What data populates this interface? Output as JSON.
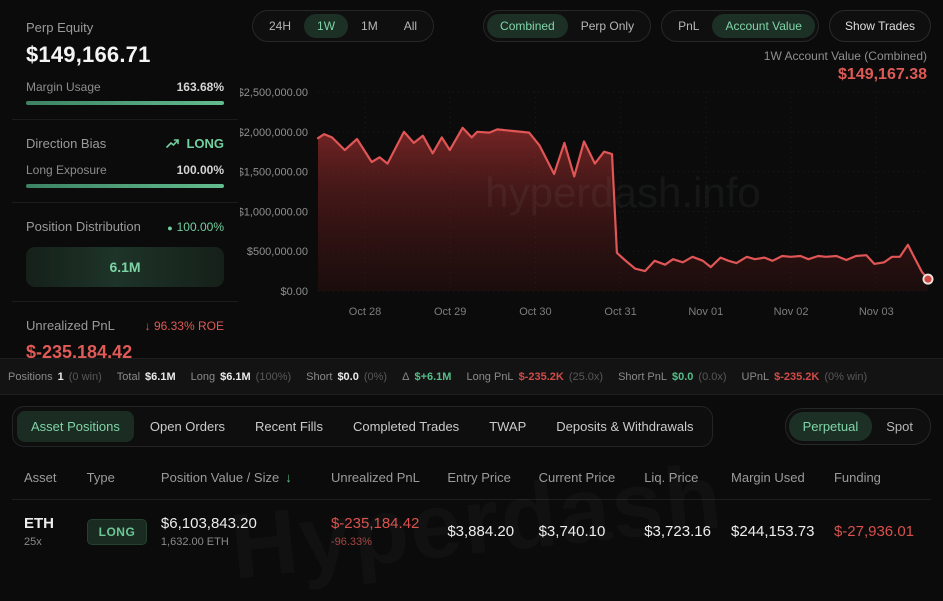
{
  "colors": {
    "accent_green": "#7fd3a6",
    "accent_red": "#e05555",
    "green_value": "#55bd88",
    "red_value": "#d14b47"
  },
  "sidebar": {
    "perp_equity_label": "Perp Equity",
    "perp_equity_value": "$149,166.71",
    "margin_usage_label": "Margin Usage",
    "margin_usage_value": "163.68%",
    "direction_bias_label": "Direction Bias",
    "direction_bias_value": "LONG",
    "long_exposure_label": "Long Exposure",
    "long_exposure_value": "100.00%",
    "position_distribution_label": "Position Distribution",
    "position_distribution_value": "100.00%",
    "distribution_bar_label": "6.1M",
    "unrealized_pnl_label": "Unrealized PnL",
    "unrealized_roe_value": "96.33% ROE",
    "unrealized_pnl_value": "$-235,184.42"
  },
  "toolbar": {
    "ranges": [
      "24H",
      "1W",
      "1M",
      "All"
    ],
    "active_range": "1W",
    "scopes": [
      "Combined",
      "Perp Only"
    ],
    "active_scope": "Combined",
    "metrics": [
      "PnL",
      "Account Value"
    ],
    "active_metric": "Account Value",
    "show_trades_label": "Show Trades"
  },
  "chart_header": {
    "label": "1W Account Value (Combined)",
    "value": "$149,167.38"
  },
  "chart_data": {
    "type": "area",
    "title": "1W Account Value (Combined)",
    "ylim": [
      0,
      2500000
    ],
    "y_ticks": [
      {
        "value": 2500000,
        "label": "$2,500,000.00"
      },
      {
        "value": 2000000,
        "label": "$2,000,000.00"
      },
      {
        "value": 1500000,
        "label": "$1,500,000.00"
      },
      {
        "value": 1000000,
        "label": "$1,000,000.00"
      },
      {
        "value": 500000,
        "label": "$500,000.00"
      },
      {
        "value": 0,
        "label": "$0.00"
      }
    ],
    "x_ticks": [
      "Oct 28",
      "Oct 29",
      "Oct 30",
      "Oct 31",
      "Nov 01",
      "Nov 02",
      "Nov 03"
    ],
    "grid": "dotted",
    "legend": "none",
    "line_color": "#e05555",
    "last_value": 149167.38,
    "watermark": "hyperdash.info",
    "points": [
      [
        0.0,
        1920000
      ],
      [
        0.01,
        1970000
      ],
      [
        0.023,
        1930000
      ],
      [
        0.044,
        1770000
      ],
      [
        0.064,
        1910000
      ],
      [
        0.088,
        1620000
      ],
      [
        0.101,
        1680000
      ],
      [
        0.114,
        1600000
      ],
      [
        0.141,
        2000000
      ],
      [
        0.157,
        1860000
      ],
      [
        0.172,
        1950000
      ],
      [
        0.188,
        1730000
      ],
      [
        0.203,
        1930000
      ],
      [
        0.216,
        1770000
      ],
      [
        0.237,
        2050000
      ],
      [
        0.252,
        1930000
      ],
      [
        0.261,
        2000000
      ],
      [
        0.281,
        1990000
      ],
      [
        0.294,
        2030000
      ],
      [
        0.32,
        2010000
      ],
      [
        0.346,
        1990000
      ],
      [
        0.363,
        1830000
      ],
      [
        0.387,
        1470000
      ],
      [
        0.404,
        1860000
      ],
      [
        0.42,
        1440000
      ],
      [
        0.436,
        1880000
      ],
      [
        0.454,
        1600000
      ],
      [
        0.469,
        1750000
      ],
      [
        0.482,
        1720000
      ],
      [
        0.49,
        480000
      ],
      [
        0.503,
        390000
      ],
      [
        0.52,
        280000
      ],
      [
        0.536,
        250000
      ],
      [
        0.552,
        380000
      ],
      [
        0.569,
        330000
      ],
      [
        0.582,
        400000
      ],
      [
        0.598,
        360000
      ],
      [
        0.614,
        430000
      ],
      [
        0.631,
        380000
      ],
      [
        0.644,
        300000
      ],
      [
        0.66,
        420000
      ],
      [
        0.673,
        380000
      ],
      [
        0.686,
        350000
      ],
      [
        0.703,
        430000
      ],
      [
        0.716,
        400000
      ],
      [
        0.732,
        420000
      ],
      [
        0.745,
        380000
      ],
      [
        0.761,
        440000
      ],
      [
        0.775,
        430000
      ],
      [
        0.791,
        440000
      ],
      [
        0.804,
        400000
      ],
      [
        0.82,
        440000
      ],
      [
        0.833,
        430000
      ],
      [
        0.85,
        440000
      ],
      [
        0.866,
        390000
      ],
      [
        0.882,
        440000
      ],
      [
        0.899,
        450000
      ],
      [
        0.912,
        340000
      ],
      [
        0.928,
        360000
      ],
      [
        0.941,
        430000
      ],
      [
        0.954,
        430000
      ],
      [
        0.967,
        580000
      ],
      [
        0.977,
        430000
      ],
      [
        0.99,
        240000
      ],
      [
        1.0,
        149167
      ]
    ]
  },
  "summary": {
    "items": [
      {
        "label": "Positions",
        "value": "1",
        "color": "white",
        "suffix": "(0 win)"
      },
      {
        "label": "Total",
        "value": "$6.1M",
        "color": "white",
        "suffix": ""
      },
      {
        "label": "Long",
        "value": "$6.1M",
        "color": "white",
        "suffix": "(100%)"
      },
      {
        "label": "Short",
        "value": "$0.0",
        "color": "white",
        "suffix": "(0%)"
      },
      {
        "label": "Δ",
        "value": "$+6.1M",
        "color": "green",
        "suffix": ""
      },
      {
        "label": "Long PnL",
        "value": "$-235.2K",
        "color": "red",
        "suffix": "(25.0x)"
      },
      {
        "label": "Short PnL",
        "value": "$0.0",
        "color": "green",
        "suffix": "(0.0x)"
      },
      {
        "label": "UPnL",
        "value": "$-235.2K",
        "color": "red",
        "suffix": "(0% win)"
      }
    ]
  },
  "tabs": {
    "items": [
      "Asset Positions",
      "Open Orders",
      "Recent Fills",
      "Completed Trades",
      "TWAP",
      "Deposits & Withdrawals"
    ],
    "active": "Asset Positions",
    "markets": [
      "Perpetual",
      "Spot"
    ],
    "active_market": "Perpetual"
  },
  "table": {
    "headers": [
      "Asset",
      "Type",
      "Position Value / Size",
      "Unrealized PnL",
      "Entry Price",
      "Current Price",
      "Liq. Price",
      "Margin Used",
      "Funding"
    ],
    "sort_column": "Position Value / Size",
    "sort_arrow": "↓",
    "rows": [
      {
        "asset": "ETH",
        "leverage": "25x",
        "type": "LONG",
        "position_value": "$6,103,843.20",
        "position_size": "1,632.00 ETH",
        "unrealized_pnl": "$-235,184.42",
        "unrealized_pct": "-96.33%",
        "entry_price": "$3,884.20",
        "current_price": "$3,740.10",
        "liq_price": "$3,723.16",
        "margin_used": "$244,153.73",
        "funding": "$-27,936.01"
      }
    ]
  },
  "watermarks": {
    "chart": "hyperdash.info",
    "table": "Hyperdash"
  },
  "icons": {
    "trend_up": "trend-up-icon",
    "arrow_down": "↓",
    "dot": "●"
  }
}
